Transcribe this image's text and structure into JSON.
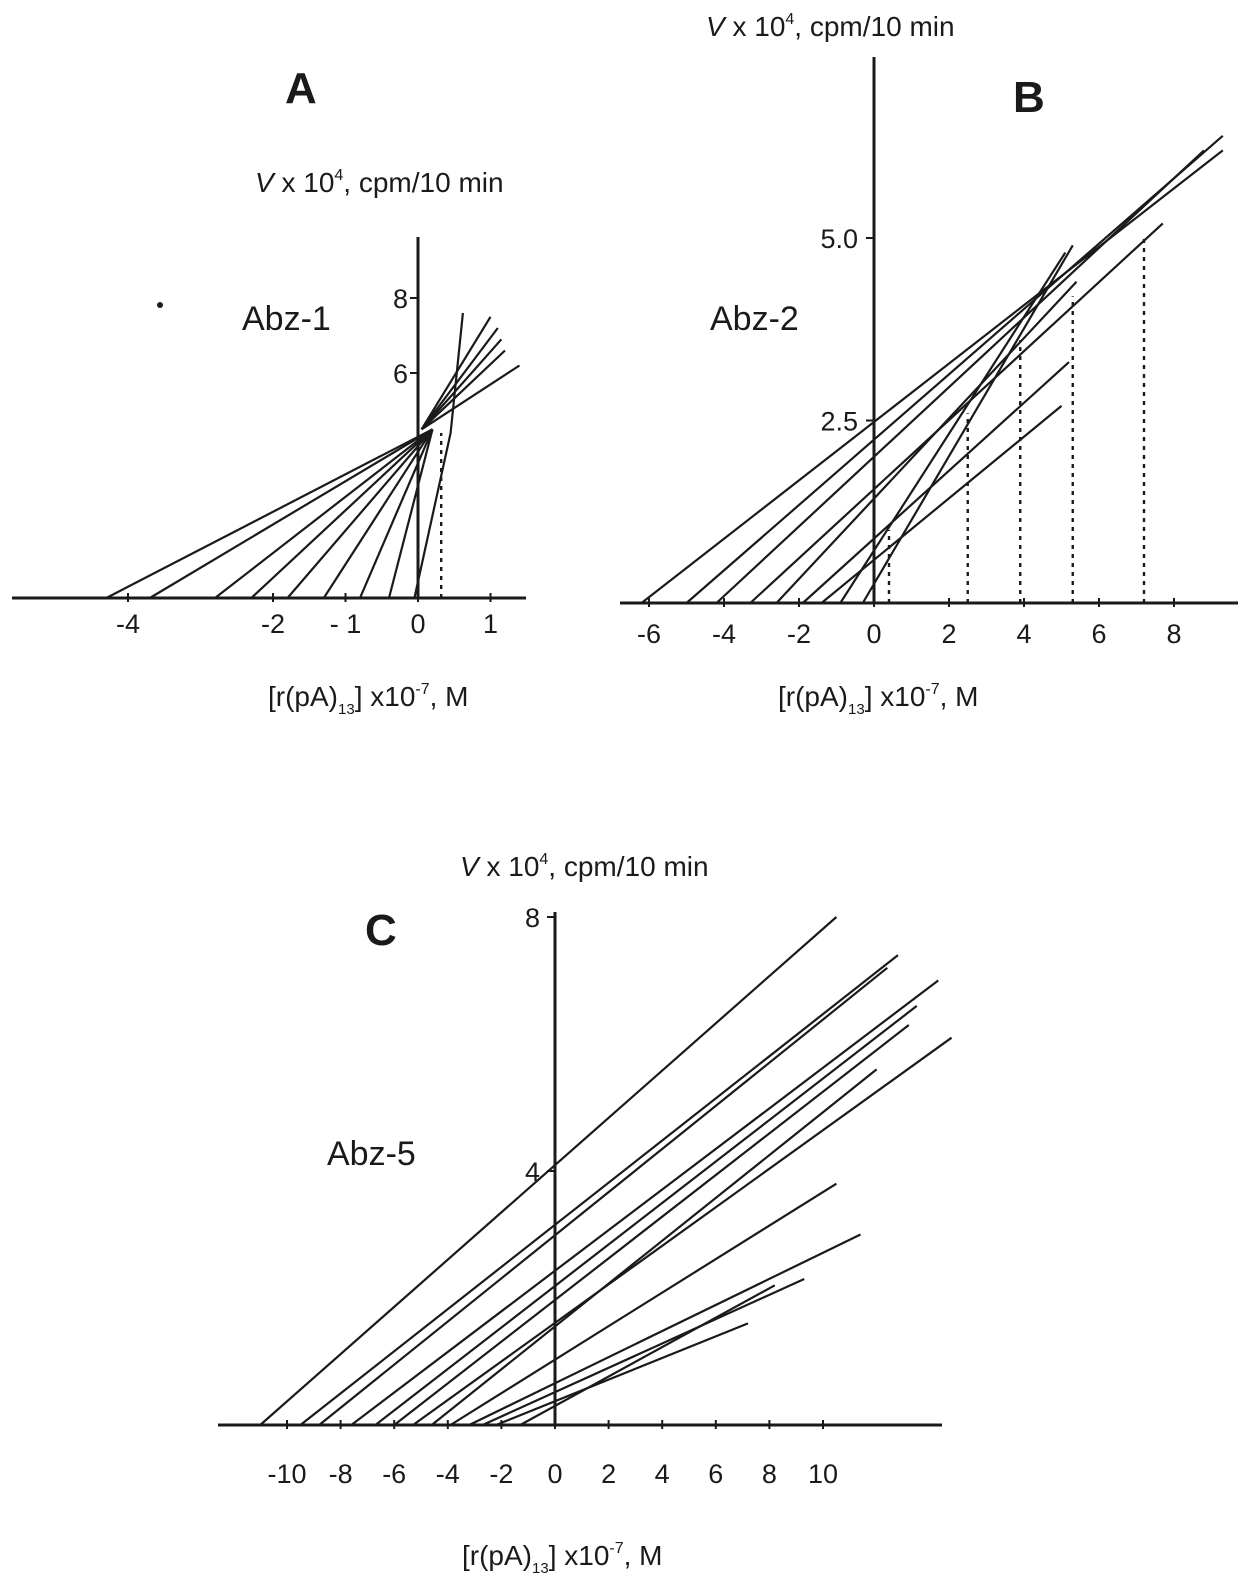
{
  "chart_data": [
    {
      "type": "line",
      "panel_label": "A",
      "compound": "Abz-1",
      "xlabel": "[r(pA)13] x10-7, M",
      "ylabel": "V x 104, cpm/10 min",
      "xlim": [
        -5.3,
        1.4
      ],
      "ylim": [
        0,
        9.5
      ],
      "x_ticks": [
        -4,
        -2,
        -1,
        0,
        1
      ],
      "x_tick_labels": [
        "-4",
        "-2",
        "- 1",
        "0",
        "1"
      ],
      "y_ticks": [
        6,
        8
      ],
      "y_tick_labels": [
        "6",
        "8"
      ],
      "series": [
        {
          "x": [
            -4.3,
            0.2
          ],
          "y": [
            0,
            4.5
          ]
        },
        {
          "x": [
            -3.7,
            0.2
          ],
          "y": [
            0,
            4.5
          ]
        },
        {
          "x": [
            -2.8,
            0.2
          ],
          "y": [
            0,
            4.5
          ]
        },
        {
          "x": [
            -2.3,
            0.2
          ],
          "y": [
            0,
            4.5
          ]
        },
        {
          "x": [
            -1.8,
            0.2
          ],
          "y": [
            0,
            4.5
          ]
        },
        {
          "x": [
            -1.3,
            0.2
          ],
          "y": [
            0,
            4.5
          ]
        },
        {
          "x": [
            -0.8,
            0.2
          ],
          "y": [
            0,
            4.5
          ]
        },
        {
          "x": [
            -0.4,
            0.2
          ],
          "y": [
            0,
            4.5
          ]
        },
        {
          "x": [
            -0.05,
            0.45,
            0.62
          ],
          "y": [
            0,
            4.4,
            7.6
          ]
        },
        {
          "x": [
            0.05,
            1.0
          ],
          "y": [
            4.5,
            7.5
          ]
        },
        {
          "x": [
            0.05,
            1.1
          ],
          "y": [
            4.5,
            7.2
          ]
        },
        {
          "x": [
            0.05,
            1.15
          ],
          "y": [
            4.5,
            6.9
          ]
        },
        {
          "x": [
            0.05,
            1.2
          ],
          "y": [
            4.5,
            6.6
          ]
        },
        {
          "x": [
            0.05,
            1.4
          ],
          "y": [
            4.5,
            6.2
          ]
        }
      ],
      "dotted_drop_lines": [
        {
          "x": 0.32,
          "y": 4.4
        }
      ],
      "grid": false
    },
    {
      "type": "line",
      "panel_label": "B",
      "compound": "Abz-2",
      "xlabel": "[r(pA)13] x10-7, M",
      "ylabel": "V x 104, cpm/10 min",
      "xlim": [
        -7,
        10
      ],
      "ylim": [
        0,
        7.6
      ],
      "x_ticks": [
        -6,
        -4,
        -2,
        0,
        2,
        4,
        6,
        8
      ],
      "x_tick_labels": [
        "-6",
        "-4",
        "-2",
        "0",
        "2",
        "4",
        "6",
        "8"
      ],
      "y_ticks": [
        2.5,
        5.0
      ],
      "y_tick_labels": [
        "2.5",
        "5.0"
      ],
      "series": [
        {
          "x": [
            -6.2,
            9.3
          ],
          "y": [
            0,
            6.2
          ]
        },
        {
          "x": [
            -5.0,
            9.3
          ],
          "y": [
            0,
            6.4
          ]
        },
        {
          "x": [
            -4.2,
            8.8
          ],
          "y": [
            0,
            6.2
          ]
        },
        {
          "x": [
            -3.3,
            7.7
          ],
          "y": [
            0,
            5.2
          ]
        },
        {
          "x": [
            -2.6,
            5.4
          ],
          "y": [
            0,
            4.4
          ]
        },
        {
          "x": [
            -1.9,
            5.2
          ],
          "y": [
            0,
            3.3
          ]
        },
        {
          "x": [
            -1.4,
            5.0
          ],
          "y": [
            0,
            2.7
          ]
        },
        {
          "x": [
            -0.9,
            5.1
          ],
          "y": [
            0,
            4.8
          ]
        },
        {
          "x": [
            -0.3,
            5.3
          ],
          "y": [
            0,
            4.9
          ]
        }
      ],
      "dotted_drop_lines": [
        {
          "x": 0.4,
          "y": 1.0
        },
        {
          "x": 2.5,
          "y": 2.6
        },
        {
          "x": 3.9,
          "y": 3.6
        },
        {
          "x": 5.3,
          "y": 4.2
        },
        {
          "x": 7.2,
          "y": 5.0
        }
      ],
      "grid": false
    },
    {
      "type": "line",
      "panel_label": "C",
      "compound": "Abz-5",
      "xlabel": "[r(pA)13] x10-7, M",
      "ylabel": "V x 104, cpm/10 min",
      "xlim": [
        -12.5,
        14.5
      ],
      "ylim": [
        0,
        8.2
      ],
      "x_ticks": [
        -10,
        -8,
        -6,
        -4,
        -2,
        0,
        2,
        4,
        6,
        8,
        10
      ],
      "x_tick_labels": [
        "-10",
        "-8",
        "-6",
        "-4",
        "-2",
        "0",
        "2",
        "4",
        "6",
        "8",
        "10"
      ],
      "y_ticks": [
        4,
        8
      ],
      "y_tick_labels": [
        "4",
        "8"
      ],
      "series": [
        {
          "x": [
            -11.0,
            10.5
          ],
          "y": [
            0,
            8.0
          ]
        },
        {
          "x": [
            -9.5,
            12.8
          ],
          "y": [
            0,
            7.4
          ]
        },
        {
          "x": [
            -8.8,
            12.4
          ],
          "y": [
            0,
            7.2
          ]
        },
        {
          "x": [
            -7.6,
            14.3
          ],
          "y": [
            0,
            7.0
          ]
        },
        {
          "x": [
            -6.7,
            13.5
          ],
          "y": [
            0,
            6.6
          ]
        },
        {
          "x": [
            -6.0,
            13.2
          ],
          "y": [
            0,
            6.3
          ]
        },
        {
          "x": [
            -5.3,
            14.8
          ],
          "y": [
            0,
            6.1
          ]
        },
        {
          "x": [
            -4.6,
            12.0
          ],
          "y": [
            0,
            5.6
          ]
        },
        {
          "x": [
            -3.9,
            10.5
          ],
          "y": [
            0,
            3.8
          ]
        },
        {
          "x": [
            -3.2,
            11.4
          ],
          "y": [
            0,
            3.0
          ]
        },
        {
          "x": [
            -2.7,
            9.3
          ],
          "y": [
            0,
            2.3
          ]
        },
        {
          "x": [
            -2.2,
            7.2
          ],
          "y": [
            0,
            1.6
          ]
        },
        {
          "x": [
            -1.3,
            8.2
          ],
          "y": [
            0,
            2.2
          ]
        }
      ],
      "dotted_drop_lines": [],
      "grid": false
    }
  ]
}
